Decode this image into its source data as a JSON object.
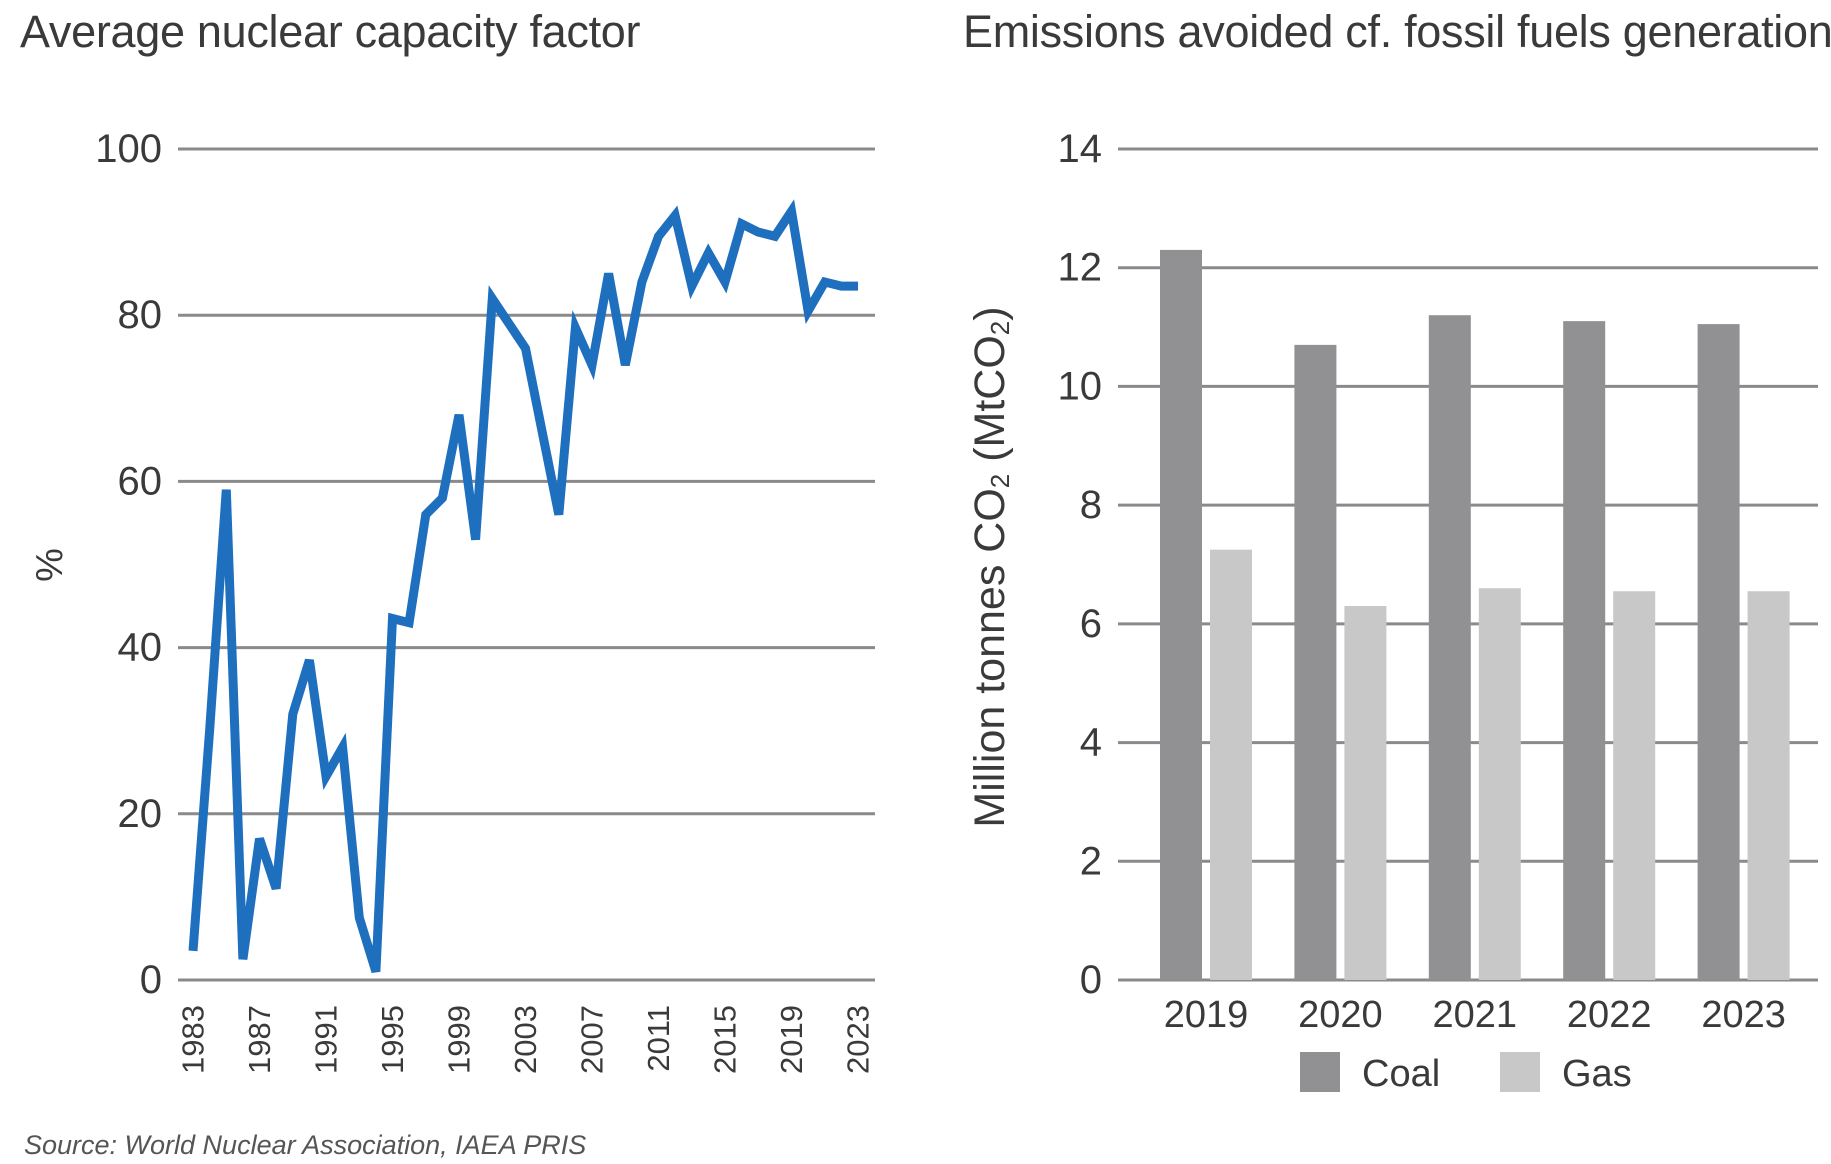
{
  "chart_data": [
    {
      "type": "line",
      "title": "Average nuclear capacity factor",
      "ylabel": "%",
      "xlabel": "",
      "ylim": [
        0,
        100
      ],
      "yticks": [
        0,
        20,
        40,
        60,
        80,
        100
      ],
      "xlim": [
        1983,
        2023
      ],
      "xticks": [
        "1983",
        "1987",
        "1991",
        "1995",
        "1999",
        "2003",
        "2007",
        "2011",
        "2015",
        "2019",
        "2023"
      ],
      "grid": true,
      "color": "#1f6fbf",
      "series": [
        {
          "x": [
            1983,
            1984,
            1985,
            1986,
            1987,
            1988,
            1989,
            1990,
            1991,
            1992,
            1993,
            1994,
            1995,
            1996,
            1997,
            1998,
            1999,
            2000,
            2001,
            2002,
            2003,
            2004,
            2005,
            2006,
            2007,
            2008,
            2009,
            2010,
            2011,
            2012,
            2013,
            2014,
            2015,
            2016,
            2017,
            2018,
            2019,
            2020,
            2021,
            2022,
            2023
          ],
          "values": [
            3.5,
            30,
            59,
            2.5,
            17,
            11,
            32,
            38.5,
            24.5,
            28,
            7.5,
            1,
            43.5,
            43,
            56,
            58,
            68,
            53,
            82,
            79,
            76,
            66,
            56,
            78.5,
            74,
            85,
            74,
            84,
            89.5,
            92,
            83.5,
            87.5,
            84,
            91,
            90,
            89.5,
            92.5,
            80.5,
            84,
            83.5,
            83.5
          ]
        }
      ]
    },
    {
      "type": "bar",
      "title": "Emissions avoided cf. fossil fuels generation",
      "ylabel_main": "Million tonnes CO",
      "ylabel_sub1": "2",
      "ylabel_paren": " (MtCO",
      "ylabel_sub2": "2",
      "ylabel_close": ")",
      "ylim": [
        0,
        14
      ],
      "yticks": [
        0,
        2,
        4,
        6,
        8,
        10,
        12,
        14
      ],
      "grid": true,
      "legend_position": "bottom",
      "categories": [
        "2019",
        "2020",
        "2021",
        "2022",
        "2023"
      ],
      "series": [
        {
          "name": "Coal",
          "color": "#919193",
          "values": [
            12.3,
            10.7,
            11.2,
            11.1,
            11.05
          ]
        },
        {
          "name": "Gas",
          "color": "#c8c8c9",
          "values": [
            7.25,
            6.3,
            6.6,
            6.55,
            6.55
          ]
        }
      ]
    }
  ],
  "source": "Source: World Nuclear Association, IAEA PRIS"
}
